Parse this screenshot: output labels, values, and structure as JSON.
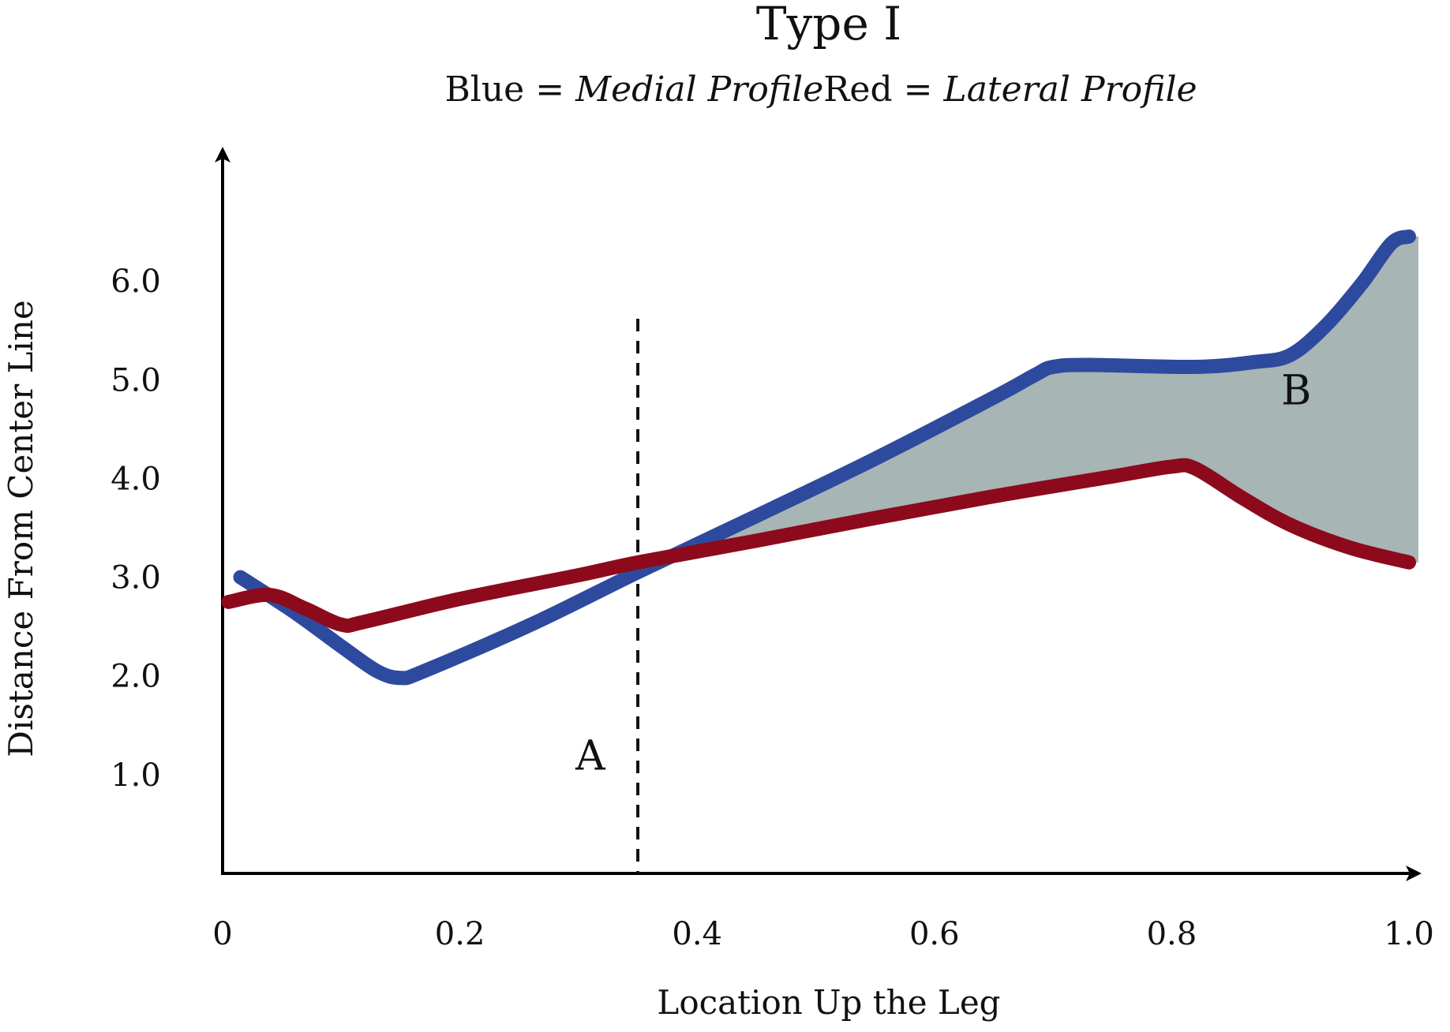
{
  "chart_data": {
    "type": "line",
    "title": "Type I",
    "subtitle": {
      "blue_key": "Blue = ",
      "blue_name": "Medial Profile",
      "red_key": "Red = ",
      "red_name": "Lateral Profile"
    },
    "xlabel": "Location Up the Leg",
    "ylabel": "Distance From Center Line",
    "xlim": [
      0,
      1.0
    ],
    "ylim": [
      0,
      7.0
    ],
    "x_ticks": [
      {
        "value": 0,
        "label": "0"
      },
      {
        "value": 0.2,
        "label": "0.2"
      },
      {
        "value": 0.4,
        "label": "0.4"
      },
      {
        "value": 0.6,
        "label": "0.6"
      },
      {
        "value": 0.8,
        "label": "0.8"
      },
      {
        "value": 1.0,
        "label": "1.0"
      }
    ],
    "y_ticks": [
      {
        "value": 1.0,
        "label": "1.0"
      },
      {
        "value": 2.0,
        "label": "2.0"
      },
      {
        "value": 3.0,
        "label": "3.0"
      },
      {
        "value": 4.0,
        "label": "4.0"
      },
      {
        "value": 5.0,
        "label": "5.0"
      },
      {
        "value": 6.0,
        "label": "6.0"
      }
    ],
    "grid": false,
    "series": [
      {
        "color": "#2E4A9E",
        "points": [
          [
            0.015,
            3.0
          ],
          [
            0.06,
            2.65
          ],
          [
            0.1,
            2.3
          ],
          [
            0.13,
            2.05
          ],
          [
            0.15,
            1.98
          ],
          [
            0.17,
            2.05
          ],
          [
            0.26,
            2.52
          ],
          [
            0.35,
            3.05
          ],
          [
            0.45,
            3.62
          ],
          [
            0.55,
            4.2
          ],
          [
            0.65,
            4.82
          ],
          [
            0.685,
            5.05
          ],
          [
            0.7,
            5.13
          ],
          [
            0.73,
            5.15
          ],
          [
            0.82,
            5.13
          ],
          [
            0.87,
            5.18
          ],
          [
            0.9,
            5.25
          ],
          [
            0.93,
            5.55
          ],
          [
            0.96,
            5.97
          ],
          [
            0.985,
            6.38
          ],
          [
            1.0,
            6.45
          ]
        ]
      },
      {
        "color": "#8C0A1C",
        "points": [
          [
            0.005,
            2.75
          ],
          [
            0.04,
            2.82
          ],
          [
            0.07,
            2.68
          ],
          [
            0.1,
            2.52
          ],
          [
            0.12,
            2.55
          ],
          [
            0.2,
            2.78
          ],
          [
            0.3,
            3.02
          ],
          [
            0.35,
            3.15
          ],
          [
            0.45,
            3.37
          ],
          [
            0.55,
            3.6
          ],
          [
            0.65,
            3.82
          ],
          [
            0.75,
            4.02
          ],
          [
            0.8,
            4.12
          ],
          [
            0.82,
            4.1
          ],
          [
            0.86,
            3.8
          ],
          [
            0.9,
            3.53
          ],
          [
            0.95,
            3.3
          ],
          [
            1.0,
            3.15
          ]
        ]
      }
    ],
    "shaded_region": {
      "color": "#A7B5B4",
      "x_start": 0.35,
      "x_end": 1.0,
      "between": "blue-red"
    },
    "divider_x": 0.35,
    "annotations": [
      {
        "label": "A",
        "x": 0.31,
        "y": 1.05
      },
      {
        "label": "B",
        "x": 0.905,
        "y": 4.75
      }
    ]
  }
}
